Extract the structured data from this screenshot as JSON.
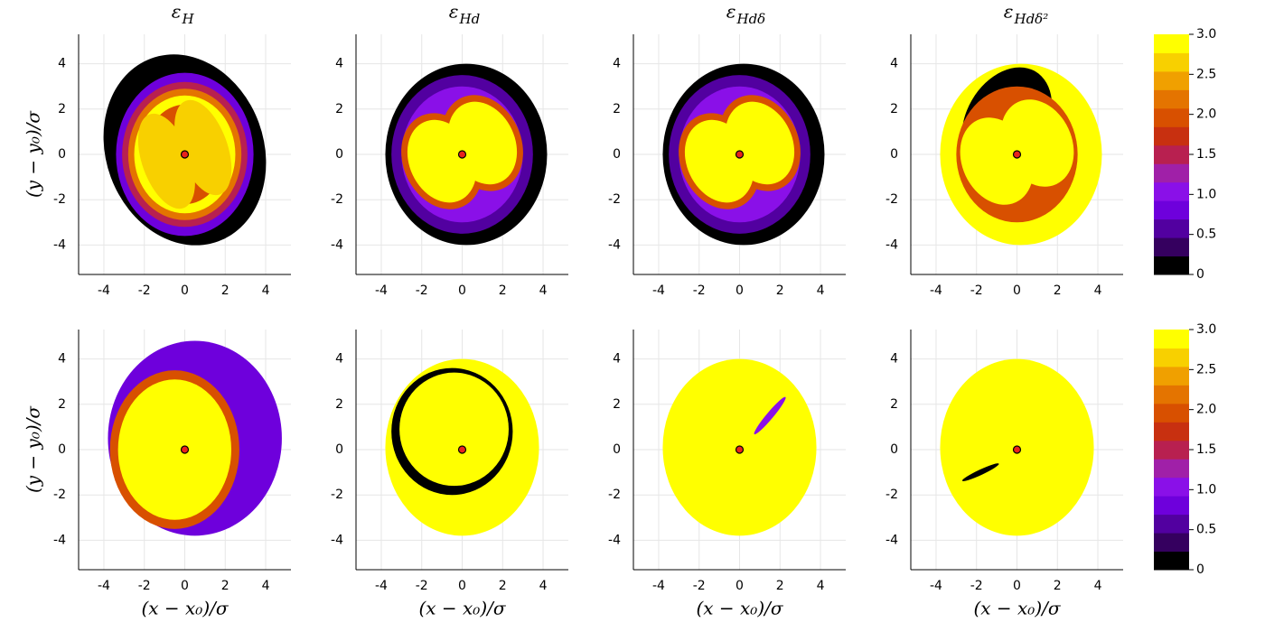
{
  "chart_data": [
    {
      "type": "contour",
      "title": {
        "symbol": "ε",
        "subscript": "H"
      },
      "ylabel": "(y − y₀)/σ",
      "xlim": [
        -5.25,
        5.25
      ],
      "ylim": [
        -5.3,
        5.3
      ],
      "xticks": [
        -4,
        -2,
        0,
        2,
        4
      ],
      "yticks": [
        -4,
        -2,
        0,
        2,
        4
      ],
      "grid": true,
      "point": {
        "x": 0,
        "y": 0,
        "color": "#e8231c"
      }
    },
    {
      "type": "contour",
      "title": {
        "symbol": "ε",
        "subscript": "Hd"
      },
      "xlim": [
        -5.25,
        5.25
      ],
      "ylim": [
        -5.3,
        5.3
      ],
      "xticks": [
        -4,
        -2,
        0,
        2,
        4
      ],
      "yticks": [
        -4,
        -2,
        0,
        2,
        4
      ],
      "grid": true,
      "point": {
        "x": 0,
        "y": 0,
        "color": "#e8231c"
      }
    },
    {
      "type": "contour",
      "title": {
        "symbol": "ε",
        "subscript": "Hdδ"
      },
      "xlim": [
        -5.25,
        5.25
      ],
      "ylim": [
        -5.3,
        5.3
      ],
      "xticks": [
        -4,
        -2,
        0,
        2,
        4
      ],
      "yticks": [
        -4,
        -2,
        0,
        2,
        4
      ],
      "grid": true,
      "point": {
        "x": 0,
        "y": 0,
        "color": "#e8231c"
      }
    },
    {
      "type": "contour",
      "title": {
        "symbol": "ε",
        "subscript": "Hdδ²"
      },
      "xlim": [
        -5.25,
        5.25
      ],
      "ylim": [
        -5.3,
        5.3
      ],
      "xticks": [
        -4,
        -2,
        0,
        2,
        4
      ],
      "yticks": [
        -4,
        -2,
        0,
        2,
        4
      ],
      "grid": true,
      "point": {
        "x": 0,
        "y": 0,
        "color": "#e8231c"
      },
      "colorbar": {
        "lim": [
          0,
          3
        ],
        "ticks": [
          0,
          0.5,
          {
            "value": 1,
            "label": "1.0"
          },
          1.5,
          {
            "value": 2,
            "label": "2.0"
          },
          2.5,
          {
            "value": 3,
            "label": "3.0"
          }
        ],
        "colors": [
          "#000000",
          "#35005f",
          "#5200a0",
          "#6e00dc",
          "#8a10e8",
          "#a020a8",
          "#b82050",
          "#c83010",
          "#d85000",
          "#e47400",
          "#f0a000",
          "#f8d000",
          "#ffff00"
        ]
      }
    },
    {
      "type": "contour",
      "xlabel": "(x − x₀)/σ",
      "ylabel": "(y − y₀)/σ",
      "xlim": [
        -5.25,
        5.25
      ],
      "ylim": [
        -5.3,
        5.3
      ],
      "xticks": [
        -4,
        -2,
        0,
        2,
        4
      ],
      "yticks": [
        -4,
        -2,
        0,
        2,
        4
      ],
      "grid": true,
      "point": {
        "x": 0,
        "y": 0,
        "color": "#e8231c"
      }
    },
    {
      "type": "contour",
      "xlabel": "(x − x₀)/σ",
      "xlim": [
        -5.25,
        5.25
      ],
      "ylim": [
        -5.3,
        5.3
      ],
      "xticks": [
        -4,
        -2,
        0,
        2,
        4
      ],
      "yticks": [
        -4,
        -2,
        0,
        2,
        4
      ],
      "grid": true,
      "point": {
        "x": 0,
        "y": 0,
        "color": "#e8231c"
      }
    },
    {
      "type": "contour",
      "xlabel": "(x − x₀)/σ",
      "xlim": [
        -5.25,
        5.25
      ],
      "ylim": [
        -5.3,
        5.3
      ],
      "xticks": [
        -4,
        -2,
        0,
        2,
        4
      ],
      "yticks": [
        -4,
        -2,
        0,
        2,
        4
      ],
      "grid": true,
      "point": {
        "x": 0,
        "y": 0,
        "color": "#e8231c"
      }
    },
    {
      "type": "contour",
      "xlabel": "(x − x₀)/σ",
      "xlim": [
        -5.25,
        5.25
      ],
      "ylim": [
        -5.3,
        5.3
      ],
      "xticks": [
        -4,
        -2,
        0,
        2,
        4
      ],
      "yticks": [
        -4,
        -2,
        0,
        2,
        4
      ],
      "grid": true,
      "point": {
        "x": 0,
        "y": 0,
        "color": "#e8231c"
      },
      "colorbar": {
        "lim": [
          0,
          3
        ],
        "ticks": [
          0,
          0.5,
          {
            "value": 1,
            "label": "1.0"
          },
          1.5,
          {
            "value": 2,
            "label": "2.0"
          },
          2.5,
          {
            "value": 3,
            "label": "3.0"
          }
        ],
        "colors": [
          "#000000",
          "#35005f",
          "#5200a0",
          "#6e00dc",
          "#8a10e8",
          "#a020a8",
          "#b82050",
          "#c83010",
          "#d85000",
          "#e47400",
          "#f0a000",
          "#f8d000",
          "#ffff00"
        ]
      }
    }
  ]
}
